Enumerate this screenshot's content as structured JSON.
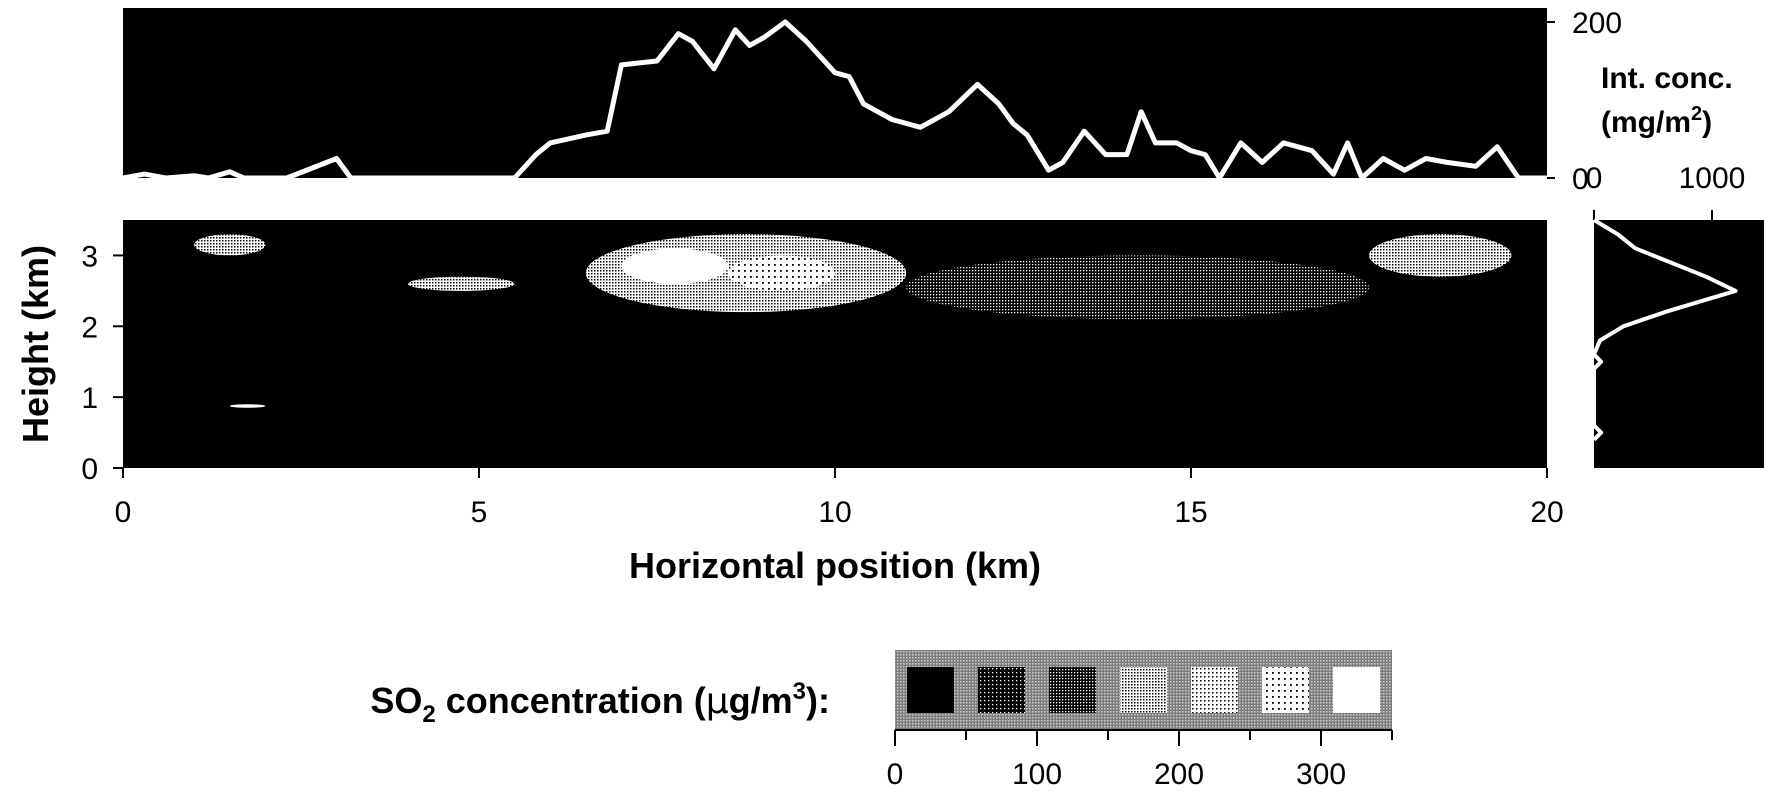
{
  "chart_data": [
    {
      "type": "line",
      "panel": "top-profile",
      "x": [
        0,
        0.3,
        0.6,
        1.0,
        1.2,
        1.5,
        1.7,
        2.3,
        3.0,
        3.2,
        5.5,
        5.8,
        6.0,
        6.5,
        6.8,
        7.0,
        7.5,
        7.8,
        8.0,
        8.3,
        8.6,
        8.8,
        9.0,
        9.3,
        9.6,
        10.0,
        10.2,
        10.4,
        10.8,
        11.2,
        11.6,
        12.0,
        12.3,
        12.5,
        12.7,
        13.0,
        13.2,
        13.5,
        13.8,
        14.1,
        14.3,
        14.5,
        14.8,
        15.0,
        15.2,
        15.4,
        15.7,
        16.0,
        16.3,
        16.7,
        17.0,
        17.2,
        17.4,
        17.7,
        18.0,
        18.3,
        18.6,
        19.0,
        19.3,
        19.6,
        20.0
      ],
      "y": [
        0,
        5,
        0,
        3,
        0,
        8,
        0,
        0,
        25,
        0,
        0,
        30,
        45,
        55,
        60,
        145,
        150,
        185,
        175,
        140,
        190,
        170,
        180,
        200,
        175,
        135,
        130,
        95,
        75,
        65,
        85,
        120,
        95,
        70,
        55,
        10,
        20,
        60,
        30,
        30,
        85,
        45,
        45,
        35,
        30,
        0,
        45,
        20,
        45,
        35,
        5,
        45,
        0,
        25,
        10,
        25,
        20,
        15,
        40,
        0,
        0
      ],
      "ylim": [
        0,
        200
      ],
      "xlim": [
        0,
        20
      ],
      "right_ticks": [
        "200",
        "0"
      ],
      "ylabel": "Int. conc. (mg/m²)"
    },
    {
      "type": "heatmap",
      "panel": "main-cross-section",
      "xlabel": "Horizontal position (km)",
      "ylabel": "Height (km)",
      "xlim": [
        0,
        20
      ],
      "ylim": [
        0,
        3.5
      ],
      "x_ticks": [
        "0",
        "5",
        "10",
        "15",
        "20"
      ],
      "y_ticks": [
        "0",
        "1",
        "2",
        "3"
      ],
      "regions": [
        {
          "x0": 6.5,
          "x1": 11.0,
          "y0": 2.2,
          "y1": 3.3,
          "level": 150
        },
        {
          "x0": 7.0,
          "x1": 8.5,
          "y0": 2.6,
          "y1": 3.1,
          "level": 300
        },
        {
          "x0": 8.5,
          "x1": 10.0,
          "y0": 2.5,
          "y1": 3.0,
          "level": 250
        },
        {
          "x0": 11.0,
          "x1": 17.5,
          "y0": 2.1,
          "y1": 3.0,
          "level": 100
        },
        {
          "x0": 1.0,
          "x1": 2.0,
          "y0": 3.0,
          "y1": 3.3,
          "level": 150
        },
        {
          "x0": 4.0,
          "x1": 5.5,
          "y0": 2.5,
          "y1": 2.7,
          "level": 150
        },
        {
          "x0": 17.5,
          "x1": 19.5,
          "y0": 2.7,
          "y1": 3.3,
          "level": 150
        },
        {
          "x0": 1.5,
          "x1": 2.0,
          "y0": 0.85,
          "y1": 0.9,
          "level": 300
        }
      ]
    },
    {
      "type": "line",
      "panel": "right-profile",
      "y": [
        3.5,
        3.3,
        3.1,
        2.9,
        2.7,
        2.5,
        2.4,
        2.2,
        2.0,
        1.8,
        1.6,
        1.5,
        1.4,
        1.0,
        0.8,
        0.6,
        0.5,
        0.4
      ],
      "x": [
        0,
        200,
        350,
        650,
        950,
        1200,
        1000,
        600,
        250,
        50,
        0,
        60,
        0,
        0,
        0,
        0,
        60,
        0
      ],
      "xlim": [
        0,
        1400
      ],
      "top_ticks": [
        "0",
        "1000"
      ]
    }
  ],
  "legend": {
    "title_before": "SO",
    "title_sub": "2",
    "title_mid": " concentration (",
    "title_mu": "μ",
    "title_unit": "g/m",
    "title_sup": "3",
    "title_end": "):",
    "ticks": [
      "0",
      "100",
      "200",
      "300"
    ],
    "swatch_count": 7
  },
  "colors": {
    "plot_bg": "#000000",
    "line": "#ffffff",
    "legend_bg": "#8a8a8a"
  }
}
